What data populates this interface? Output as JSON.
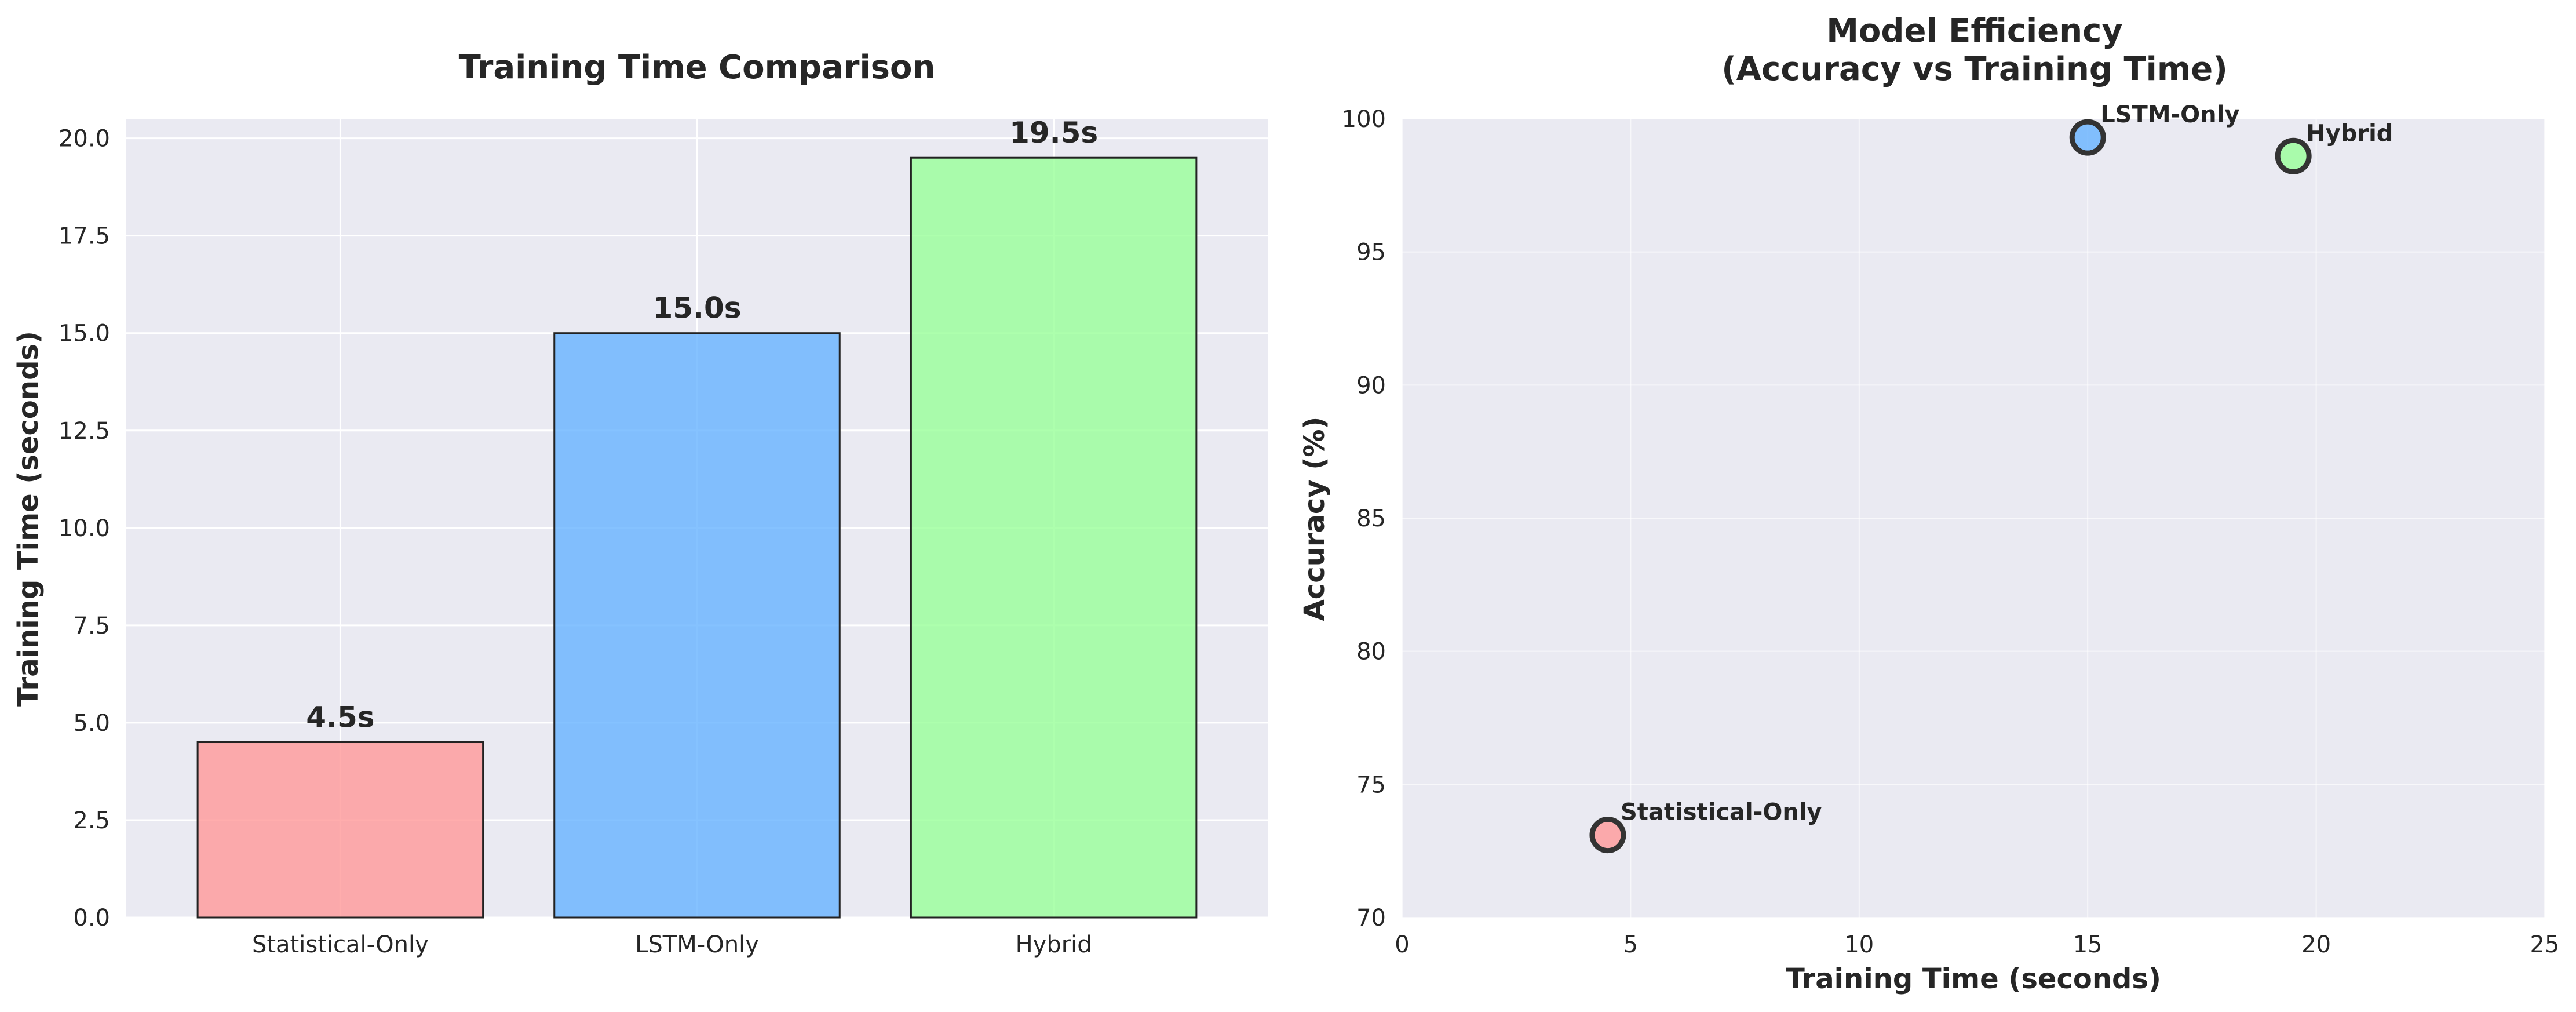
{
  "colors": {
    "plot_bg": "#EAEAF2",
    "grid": "#FFFFFF",
    "statistical": "#FF9999",
    "lstm": "#66B3FF",
    "hybrid": "#99FF99",
    "edge": "#333333"
  },
  "chart_data": [
    {
      "type": "bar",
      "title": "Training Time Comparison",
      "xlabel": "",
      "ylabel": "Training Time (seconds)",
      "categories": [
        "Statistical-Only",
        "LSTM-Only",
        "Hybrid"
      ],
      "values": [
        4.5,
        15.0,
        19.5
      ],
      "data_labels": [
        "4.5s",
        "15.0s",
        "19.5s"
      ],
      "ylim": [
        0,
        20.5
      ],
      "yticks": [
        0,
        2.5,
        5,
        7.5,
        10,
        12.5,
        15,
        17.5,
        20
      ],
      "ytick_labels": [
        "0.0",
        "2.5",
        "5.0",
        "7.5",
        "10.0",
        "12.5",
        "15.0",
        "17.5",
        "20.0"
      ],
      "grid": true
    },
    {
      "type": "scatter",
      "title": "Model Efficiency\n(Accuracy vs Training Time)",
      "title_lines": [
        "Model Efficiency",
        "(Accuracy vs Training Time)"
      ],
      "xlabel": "Training Time (seconds)",
      "ylabel": "Accuracy (%)",
      "points": [
        {
          "label": "Statistical-Only",
          "x": 4.5,
          "y": 73.1
        },
        {
          "label": "LSTM-Only",
          "x": 15.0,
          "y": 99.3
        },
        {
          "label": "Hybrid",
          "x": 19.5,
          "y": 98.6
        }
      ],
      "xlim": [
        0,
        25
      ],
      "ylim": [
        70,
        100
      ],
      "xticks": [
        0,
        5,
        10,
        15,
        20,
        25
      ],
      "xtick_labels": [
        "0",
        "5",
        "10",
        "15",
        "20",
        "25"
      ],
      "yticks": [
        70,
        75,
        80,
        85,
        90,
        95,
        100
      ],
      "ytick_labels": [
        "70",
        "75",
        "80",
        "85",
        "90",
        "95",
        "100"
      ],
      "grid": true
    }
  ]
}
